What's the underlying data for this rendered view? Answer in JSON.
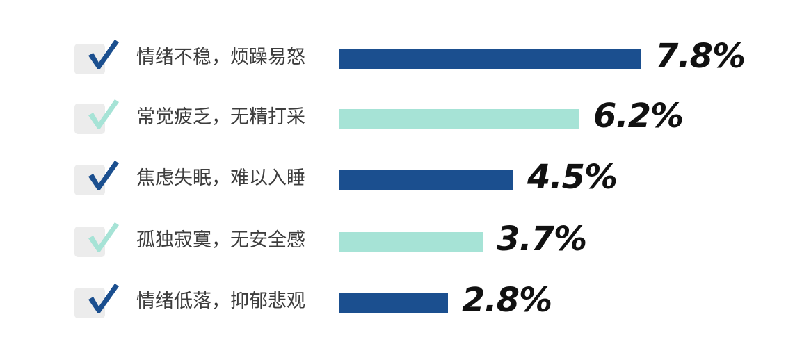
{
  "chart_data": {
    "type": "bar",
    "orientation": "horizontal",
    "categories": [
      "情绪不稳，烦躁易怒",
      "常觉疲乏，无精打采",
      "焦虑失眠，难以入睡",
      "孤独寂寞，无安全感",
      "情绪低落，抑郁悲观"
    ],
    "values": [
      7.8,
      6.2,
      4.5,
      3.7,
      2.8
    ],
    "value_labels": [
      "7.8%",
      "6.2%",
      "4.5%",
      "3.7%",
      "2.8%"
    ],
    "unit": "%",
    "xlim": [
      0,
      7.8
    ],
    "grid": false,
    "legend": "none",
    "bar_colors": [
      "#1b4f8f",
      "#a6e3d6",
      "#1b4f8f",
      "#a6e3d6",
      "#1b4f8f"
    ],
    "icons": [
      "check-icon",
      "check-icon",
      "check-icon",
      "check-icon",
      "check-icon"
    ]
  },
  "colors": {
    "dark_blue": "#1b4f8f",
    "mint": "#a6e3d6",
    "check_box_bg": "#ececec",
    "label_text": "#3d3d3d",
    "value_text": "#111111"
  }
}
